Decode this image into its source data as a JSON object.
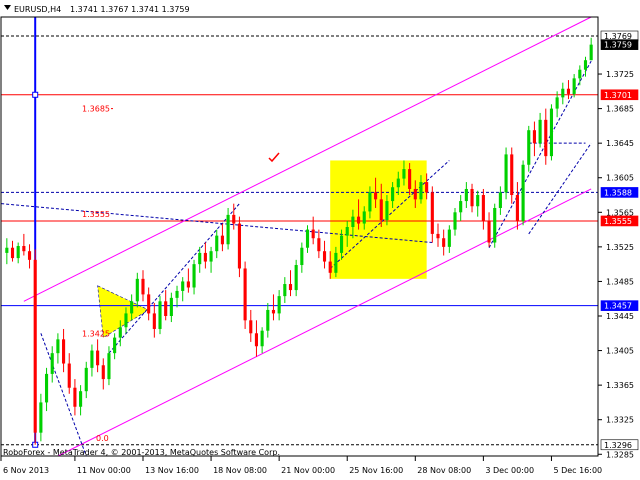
{
  "chart_header": {
    "symbol_tf": "EURUSD,H4",
    "ohlc": "1.3741  1.3767  1.3741  1.3759"
  },
  "watermark": "RoboForex - MetaTrader 4, © 2001-2013, MetaQuotes Software Corp.",
  "colors": {
    "bull": "#00d000",
    "bear": "#ff0000",
    "channel": "#ff00ff",
    "level": "#ff0000",
    "level_blue": "#0000ff",
    "zone": "#ffff00",
    "dashed": "#0000aa",
    "price_label_bg": "#ff0000",
    "current_label_bg": "#000000"
  },
  "chart_data": {
    "type": "candlestick",
    "title": "EURUSD,H4",
    "x_ticks": [
      "6 Nov 2013",
      "11 Nov 00:00",
      "13 Nov 16:00",
      "18 Nov 08:00",
      "21 Nov 00:00",
      "25 Nov 16:00",
      "28 Nov 08:00",
      "3 Dec 00:00",
      "5 Dec 16:00"
    ],
    "y_ticks": [
      "1.3725",
      "1.3685",
      "1.3645",
      "1.3605",
      "1.3565",
      "1.3525",
      "1.3485",
      "1.3445",
      "1.3405",
      "1.3365",
      "1.3325",
      "1.3285"
    ],
    "ylim": [
      1.3283,
      1.3791
    ],
    "price_labels": [
      {
        "text": "1.3769",
        "kind": "plain"
      },
      {
        "text": "1.3759",
        "kind": "current"
      },
      {
        "text": "1.3701",
        "kind": "level"
      },
      {
        "text": "1.3588",
        "kind": "blue"
      },
      {
        "text": "1.3555",
        "kind": "level"
      },
      {
        "text": "1.3457",
        "kind": "blue"
      },
      {
        "text": "1.3296",
        "kind": "plain"
      }
    ],
    "level_annotations": [
      "1.3685",
      "1.3555",
      "1.3425",
      "0.0"
    ],
    "horizontal_levels": [
      {
        "price": 1.3769,
        "style": "dashed",
        "color": "#000000"
      },
      {
        "price": 1.3701,
        "style": "solid",
        "color": "#ff0000"
      },
      {
        "price": 1.3588,
        "style": "dashed",
        "color": "#0000aa"
      },
      {
        "price": 1.3555,
        "style": "solid",
        "color": "#ff0000"
      },
      {
        "price": 1.3457,
        "style": "solid",
        "color": "#0000ff"
      },
      {
        "price": 1.3296,
        "style": "dashed",
        "color": "#000000"
      }
    ],
    "candles": [
      [
        1.3518,
        1.3535,
        1.3505,
        1.3524
      ],
      [
        1.3524,
        1.3532,
        1.3508,
        1.3512
      ],
      [
        1.3512,
        1.353,
        1.3506,
        1.3526
      ],
      [
        1.3526,
        1.354,
        1.3515,
        1.352
      ],
      [
        1.352,
        1.3528,
        1.35,
        1.351
      ],
      [
        1.351,
        1.3522,
        1.3296,
        1.331
      ],
      [
        1.331,
        1.3355,
        1.33,
        1.3345
      ],
      [
        1.3345,
        1.3385,
        1.3335,
        1.3378
      ],
      [
        1.3378,
        1.341,
        1.3368,
        1.3402
      ],
      [
        1.3402,
        1.3425,
        1.339,
        1.3418
      ],
      [
        1.3418,
        1.343,
        1.338,
        1.339
      ],
      [
        1.339,
        1.3402,
        1.3355,
        1.3362
      ],
      [
        1.3362,
        1.3372,
        1.333,
        1.334
      ],
      [
        1.334,
        1.3365,
        1.333,
        1.3358
      ],
      [
        1.3358,
        1.3392,
        1.335,
        1.3385
      ],
      [
        1.3385,
        1.3412,
        1.3375,
        1.3405
      ],
      [
        1.3405,
        1.3418,
        1.338,
        1.3388
      ],
      [
        1.3388,
        1.3396,
        1.336,
        1.3372
      ],
      [
        1.3372,
        1.341,
        1.3365,
        1.3402
      ],
      [
        1.3402,
        1.3425,
        1.3395,
        1.342
      ],
      [
        1.342,
        1.344,
        1.341,
        1.3432
      ],
      [
        1.3432,
        1.3455,
        1.3425,
        1.3448
      ],
      [
        1.3448,
        1.347,
        1.344,
        1.3462
      ],
      [
        1.3462,
        1.3495,
        1.3455,
        1.3488
      ],
      [
        1.3488,
        1.3498,
        1.3462,
        1.347
      ],
      [
        1.347,
        1.3478,
        1.344,
        1.3448
      ],
      [
        1.3448,
        1.346,
        1.342,
        1.343
      ],
      [
        1.343,
        1.3468,
        1.3424,
        1.3462
      ],
      [
        1.3462,
        1.3475,
        1.344,
        1.3445
      ],
      [
        1.3445,
        1.3472,
        1.3438,
        1.3466
      ],
      [
        1.3466,
        1.348,
        1.3455,
        1.3474
      ],
      [
        1.3474,
        1.349,
        1.3462,
        1.3485
      ],
      [
        1.3485,
        1.35,
        1.3472,
        1.3478
      ],
      [
        1.3478,
        1.351,
        1.347,
        1.3505
      ],
      [
        1.3505,
        1.3525,
        1.3495,
        1.3518
      ],
      [
        1.3518,
        1.353,
        1.35,
        1.3508
      ],
      [
        1.3508,
        1.3525,
        1.3495,
        1.352
      ],
      [
        1.352,
        1.3545,
        1.3512,
        1.3538
      ],
      [
        1.3538,
        1.3552,
        1.352,
        1.3528
      ],
      [
        1.3528,
        1.357,
        1.3522,
        1.3562
      ],
      [
        1.3562,
        1.3575,
        1.3545,
        1.3552
      ],
      [
        1.3552,
        1.356,
        1.349,
        1.35
      ],
      [
        1.35,
        1.3508,
        1.343,
        1.344
      ],
      [
        1.344,
        1.3452,
        1.3415,
        1.3425
      ],
      [
        1.3425,
        1.344,
        1.3398,
        1.341
      ],
      [
        1.341,
        1.3432,
        1.3402,
        1.3428
      ],
      [
        1.3428,
        1.346,
        1.342,
        1.3452
      ],
      [
        1.3452,
        1.347,
        1.344,
        1.3448
      ],
      [
        1.3448,
        1.3475,
        1.344,
        1.3468
      ],
      [
        1.3468,
        1.349,
        1.346,
        1.3482
      ],
      [
        1.3482,
        1.3498,
        1.3468,
        1.3475
      ],
      [
        1.3475,
        1.351,
        1.3468,
        1.3504
      ],
      [
        1.3504,
        1.353,
        1.3495,
        1.3524
      ],
      [
        1.3524,
        1.355,
        1.3518,
        1.3545
      ],
      [
        1.3545,
        1.356,
        1.3528,
        1.3535
      ],
      [
        1.3535,
        1.3545,
        1.3512,
        1.352
      ],
      [
        1.352,
        1.3532,
        1.35,
        1.3508
      ],
      [
        1.3508,
        1.352,
        1.3488,
        1.3495
      ],
      [
        1.3495,
        1.3525,
        1.349,
        1.3518
      ],
      [
        1.3518,
        1.3545,
        1.351,
        1.3538
      ],
      [
        1.3538,
        1.3555,
        1.3525,
        1.3548
      ],
      [
        1.3548,
        1.3568,
        1.3535,
        1.356
      ],
      [
        1.356,
        1.358,
        1.3545,
        1.3552
      ],
      [
        1.3552,
        1.3572,
        1.3545,
        1.3566
      ],
      [
        1.3566,
        1.3595,
        1.3558,
        1.3588
      ],
      [
        1.3588,
        1.3605,
        1.357,
        1.358
      ],
      [
        1.358,
        1.3598,
        1.3548,
        1.3556
      ],
      [
        1.3556,
        1.3585,
        1.355,
        1.3578
      ],
      [
        1.3578,
        1.36,
        1.357,
        1.3594
      ],
      [
        1.3594,
        1.3612,
        1.3585,
        1.3604
      ],
      [
        1.3604,
        1.3625,
        1.3596,
        1.3615
      ],
      [
        1.3615,
        1.3622,
        1.3585,
        1.3592
      ],
      [
        1.3592,
        1.3602,
        1.357,
        1.358
      ],
      [
        1.358,
        1.3608,
        1.3575,
        1.36
      ],
      [
        1.36,
        1.361,
        1.358,
        1.3588
      ],
      [
        1.3588,
        1.3595,
        1.353,
        1.354
      ],
      [
        1.354,
        1.3552,
        1.3525,
        1.3535
      ],
      [
        1.3535,
        1.3545,
        1.3515,
        1.3525
      ],
      [
        1.3525,
        1.355,
        1.3518,
        1.3545
      ],
      [
        1.3545,
        1.357,
        1.3538,
        1.3565
      ],
      [
        1.3565,
        1.3585,
        1.3555,
        1.3578
      ],
      [
        1.3578,
        1.36,
        1.357,
        1.3592
      ],
      [
        1.3592,
        1.3598,
        1.3565,
        1.3572
      ],
      [
        1.3572,
        1.359,
        1.356,
        1.3585
      ],
      [
        1.3585,
        1.3592,
        1.3545,
        1.3555
      ],
      [
        1.3555,
        1.3565,
        1.3525,
        1.353
      ],
      [
        1.353,
        1.3575,
        1.3524,
        1.357
      ],
      [
        1.357,
        1.3595,
        1.3562,
        1.3588
      ],
      [
        1.3588,
        1.364,
        1.358,
        1.3632
      ],
      [
        1.3632,
        1.364,
        1.3575,
        1.3585
      ],
      [
        1.3585,
        1.36,
        1.3545,
        1.3555
      ],
      [
        1.3555,
        1.3625,
        1.355,
        1.362
      ],
      [
        1.362,
        1.3665,
        1.3612,
        1.366
      ],
      [
        1.366,
        1.367,
        1.363,
        1.3645
      ],
      [
        1.3645,
        1.368,
        1.364,
        1.3672
      ],
      [
        1.3672,
        1.3685,
        1.362,
        1.363
      ],
      [
        1.363,
        1.369,
        1.3625,
        1.3685
      ],
      [
        1.3685,
        1.3705,
        1.3675,
        1.3698
      ],
      [
        1.3698,
        1.3715,
        1.369,
        1.3708
      ],
      [
        1.3708,
        1.3718,
        1.3696,
        1.3702
      ],
      [
        1.3702,
        1.3725,
        1.3698,
        1.372
      ],
      [
        1.372,
        1.3735,
        1.3712,
        1.373
      ],
      [
        1.373,
        1.3745,
        1.3722,
        1.3741
      ],
      [
        1.3741,
        1.3767,
        1.3741,
        1.3759
      ]
    ]
  }
}
